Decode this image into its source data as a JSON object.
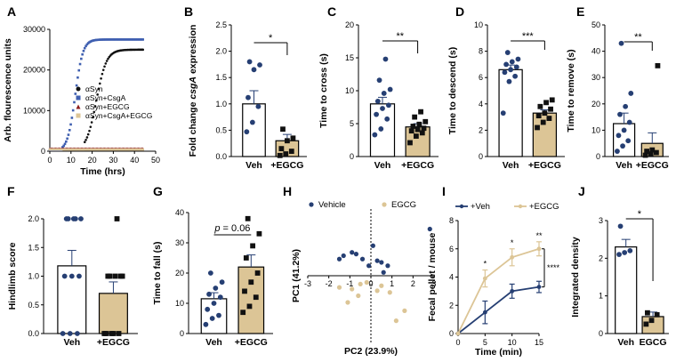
{
  "colors": {
    "navy": "#263f73",
    "tan": "#dcc596",
    "black": "#111111",
    "red": "#8b1a1a",
    "blue": "#3f5fb0"
  },
  "chart_data": [
    {
      "id": "A",
      "type": "scatter",
      "panel_label": "A",
      "xlabel": "Time (hrs)",
      "ylabel": "Arb. flourescence units",
      "xlim": [
        0,
        50
      ],
      "ylim": [
        0,
        30000
      ],
      "xticks": [
        "0",
        "10",
        "20",
        "30",
        "40",
        "50"
      ],
      "yticks": [
        "0",
        "10000",
        "20000",
        "30000"
      ],
      "legend_position": "center-right",
      "series": [
        {
          "name": "αSyn",
          "color": "#111111",
          "onset": 16,
          "plateau": 25000,
          "rate": 0.42,
          "mid": 22
        },
        {
          "name": "αSyn+CsgA",
          "color": "#3f5fb0",
          "onset": 6,
          "plateau": 27500,
          "rate": 0.55,
          "mid": 12
        },
        {
          "name": "αSyn+EGCG",
          "color": "#8b1a1a",
          "flat": 700
        },
        {
          "name": "αSyn+CsgA+EGCG",
          "color": "#dcc596",
          "flat": 400
        }
      ]
    },
    {
      "id": "B",
      "type": "bar",
      "panel_label": "B",
      "ylabel_parts": [
        "Fold change ",
        "csgA",
        " expression"
      ],
      "categories": [
        "Veh",
        "+EGCG"
      ],
      "means": [
        1.0,
        0.3
      ],
      "sem": [
        0.25,
        0.12
      ],
      "ylim": [
        0,
        2.5
      ],
      "yticks": [
        "0.0",
        "0.5",
        "1.0",
        "1.5",
        "2.0",
        "2.5"
      ],
      "points": [
        [
          0.47,
          0.65,
          0.95,
          1.12,
          1.65,
          1.74,
          1.8
        ],
        [
          0.02,
          0.05,
          0.1,
          0.15,
          0.3,
          0.35,
          0.52
        ]
      ],
      "significance": "*"
    },
    {
      "id": "C",
      "type": "bar",
      "panel_label": "C",
      "ylabel": "Time to cross (s)",
      "categories": [
        "Veh",
        "+EGCG"
      ],
      "means": [
        8.0,
        4.5
      ],
      "sem": [
        1.0,
        0.5
      ],
      "ylim": [
        0,
        20
      ],
      "yticks": [
        "0",
        "5",
        "10",
        "15",
        "20"
      ],
      "points": [
        [
          3.3,
          4.2,
          5.7,
          6.4,
          7.3,
          7.8,
          8.4,
          9.6,
          10.2,
          11.6,
          14.8
        ],
        [
          2.1,
          3.1,
          3.6,
          3.9,
          4.1,
          4.3,
          4.6,
          4.9,
          5.3,
          6.0,
          6.8
        ]
      ],
      "significance": "**"
    },
    {
      "id": "D",
      "type": "bar",
      "panel_label": "D",
      "ylabel": "Time to descend (s)",
      "categories": [
        "Veh",
        "+EGCG"
      ],
      "means": [
        6.6,
        3.3
      ],
      "sem": [
        0.35,
        0.25
      ],
      "ylim": [
        0,
        10
      ],
      "yticks": [
        "0",
        "2",
        "4",
        "6",
        "8",
        "10"
      ],
      "points": [
        [
          3.3,
          5.7,
          6.1,
          6.4,
          6.6,
          6.8,
          7.0,
          7.2,
          7.4,
          7.9
        ],
        [
          2.2,
          2.6,
          2.9,
          3.1,
          3.3,
          3.6,
          3.8,
          4.1,
          4.3
        ]
      ],
      "significance": "***"
    },
    {
      "id": "E",
      "type": "bar",
      "panel_label": "E",
      "ylabel": "Time to remove (s)",
      "categories": [
        "Veh",
        "+EGCG"
      ],
      "means": [
        12.5,
        5.0
      ],
      "sem": [
        4.0,
        4.0
      ],
      "ylim": [
        0,
        50
      ],
      "yticks": [
        "0",
        "10",
        "20",
        "30",
        "40",
        "50"
      ],
      "points": [
        [
          2,
          4,
          6,
          8,
          10,
          13,
          16,
          19,
          24,
          43
        ],
        [
          0.5,
          1.0,
          1.5,
          2.0,
          2.5,
          34.5
        ]
      ],
      "significance": "**"
    },
    {
      "id": "F",
      "type": "bar",
      "panel_label": "F",
      "ylabel": "Hindlimb score",
      "categories": [
        "Veh",
        "+EGCG"
      ],
      "means": [
        1.18,
        0.7
      ],
      "sem": [
        0.27,
        0.2
      ],
      "ylim": [
        0,
        2.0
      ],
      "yticks": [
        "0.0",
        "0.5",
        "1.0",
        "1.5",
        "2.0"
      ],
      "points": [
        [
          0,
          0,
          0,
          1,
          1,
          1,
          2,
          2,
          2,
          2,
          2
        ],
        [
          0,
          0,
          0,
          0,
          0,
          1,
          1,
          1,
          1,
          1,
          2
        ]
      ],
      "significance": ""
    },
    {
      "id": "G",
      "type": "bar",
      "panel_label": "G",
      "ylabel": "Time to fall (s)",
      "categories": [
        "Veh",
        "+EGCG"
      ],
      "means": [
        11.5,
        22.0
      ],
      "sem": [
        2.0,
        4.0
      ],
      "ylim": [
        0,
        40
      ],
      "yticks": [
        "0",
        "10",
        "20",
        "30",
        "40"
      ],
      "points": [
        [
          3,
          5,
          6,
          8,
          10,
          12,
          13,
          15,
          17,
          20
        ],
        [
          7,
          9,
          12,
          14,
          17,
          20,
          25,
          29,
          33,
          38
        ]
      ],
      "significance_parts": [
        "p",
        " = 0.06"
      ]
    },
    {
      "id": "H",
      "type": "scatter",
      "panel_label": "H",
      "xlabel": "PC2 (23.9%)",
      "ylabel": "PC1 (41.2%)",
      "xlim": [
        -3,
        3
      ],
      "ylim": [
        -4,
        4
      ],
      "xticks": [
        "-3",
        "-2",
        "-1",
        "0",
        "1",
        "2",
        "3"
      ],
      "legend_position": "top",
      "series": [
        {
          "name": "Vehicle",
          "color": "#263f73",
          "points": [
            [
              -1.5,
              1.0
            ],
            [
              -1.3,
              1.2
            ],
            [
              -0.9,
              1.4
            ],
            [
              -0.7,
              1.3
            ],
            [
              -0.4,
              1.0
            ],
            [
              -0.1,
              0.6
            ],
            [
              0.1,
              1.8
            ],
            [
              0.3,
              0.9
            ],
            [
              0.5,
              0.8
            ],
            [
              0.8,
              0.6
            ],
            [
              0.6,
              0.2
            ],
            [
              2.8,
              2.8
            ]
          ]
        },
        {
          "name": "EGCG",
          "color": "#dcc596",
          "points": [
            [
              -1.5,
              -0.7
            ],
            [
              -1.1,
              -1.6
            ],
            [
              -0.9,
              -0.8
            ],
            [
              -0.6,
              -1.2
            ],
            [
              -0.5,
              -0.5
            ],
            [
              -0.2,
              -0.4
            ],
            [
              0.3,
              -0.9
            ],
            [
              0.5,
              -0.6
            ],
            [
              0.9,
              -1.0
            ],
            [
              1.2,
              -2.7
            ],
            [
              1.6,
              -2.1
            ]
          ]
        }
      ]
    },
    {
      "id": "I",
      "type": "line",
      "panel_label": "I",
      "xlabel": "Time (min)",
      "ylabel": "Fecal pellet / mouse",
      "x": [
        0,
        5,
        10,
        15
      ],
      "xlim": [
        0,
        15
      ],
      "ylim": [
        0,
        8
      ],
      "xticks": [
        "0",
        "5",
        "10",
        "15"
      ],
      "yticks": [
        "0",
        "2",
        "4",
        "6",
        "8"
      ],
      "legend_position": "top",
      "series": [
        {
          "name": "+Veh",
          "color": "#263f73",
          "values": [
            0,
            1.5,
            3.0,
            3.3
          ],
          "err": [
            0,
            0.8,
            0.5,
            0.4
          ]
        },
        {
          "name": "+EGCG",
          "color": "#dcc596",
          "values": [
            0,
            3.9,
            5.4,
            6.0
          ],
          "err": [
            0,
            0.6,
            0.6,
            0.5
          ]
        }
      ],
      "point_stars": [
        {
          "x": 5,
          "label": "*"
        },
        {
          "x": 10,
          "label": "*"
        },
        {
          "x": 15,
          "label": "**"
        }
      ],
      "significance": "****"
    },
    {
      "id": "J",
      "type": "bar",
      "panel_label": "J",
      "ylabel": "Integrated density",
      "categories": [
        "Veh",
        "EGCG"
      ],
      "means": [
        2.3,
        0.45
      ],
      "sem": [
        0.2,
        0.12
      ],
      "ylim": [
        0,
        3
      ],
      "yticks": [
        "0",
        "1",
        "2",
        "3"
      ],
      "points": [
        [
          2.1,
          2.15,
          2.2,
          2.85
        ],
        [
          0.25,
          0.35,
          0.5,
          0.55
        ]
      ],
      "significance": "*"
    }
  ]
}
